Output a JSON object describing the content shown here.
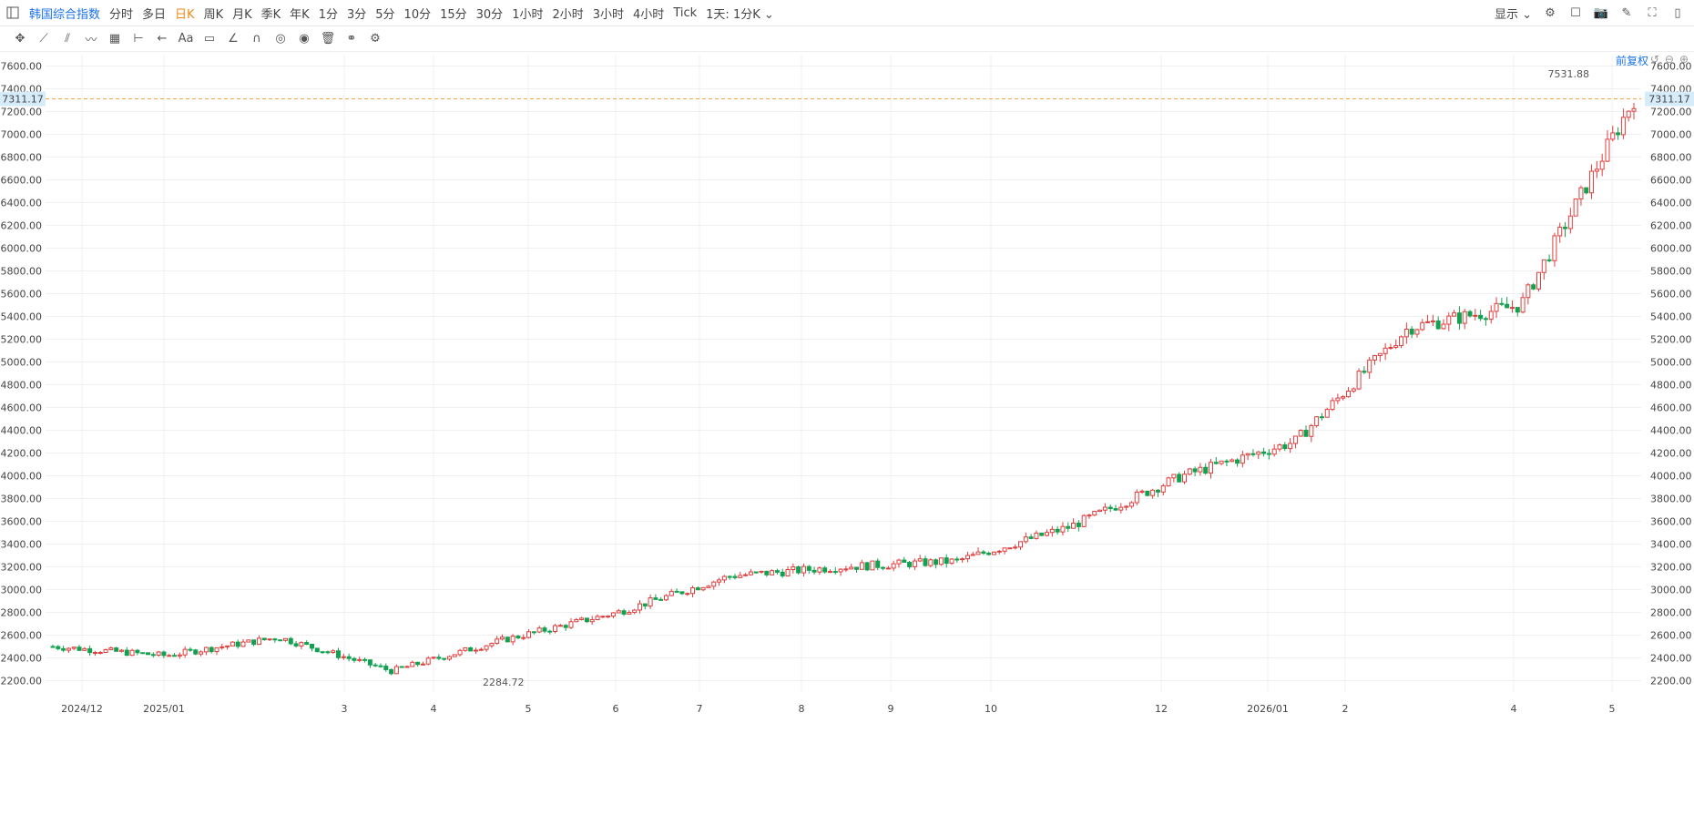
{
  "toolbar": {
    "symbol": "韩国综合指数",
    "periods": [
      "分时",
      "多日",
      "日K",
      "周K",
      "月K",
      "季K",
      "年K",
      "1分",
      "3分",
      "5分",
      "10分",
      "15分",
      "30分",
      "1小时",
      "2小时",
      "3小时",
      "4小时",
      "Tick"
    ],
    "active_period": "日K",
    "kline_setting": "1天: 1分K",
    "display_label": "显示"
  },
  "adjust_label": "前复权",
  "colors": {
    "up": "#e03d3d",
    "down": "#12a150",
    "grid": "#f0f0f0",
    "price_line": "#f0a040",
    "price_tag_bg": "#d6ecfb",
    "accent": "#1a73e8"
  },
  "chart_data": {
    "type": "candlestick",
    "ylim": [
      2100,
      7700
    ],
    "y_ticks": [
      2200,
      2400,
      2600,
      2800,
      3000,
      3200,
      3400,
      3600,
      3800,
      4000,
      4200,
      4400,
      4600,
      4800,
      5000,
      5200,
      5400,
      5600,
      5800,
      6000,
      6200,
      6400,
      6600,
      6800,
      7000,
      7200,
      7400,
      7600
    ],
    "x_tick_labels": [
      "2024/12",
      "2025/01",
      "3",
      "4",
      "5",
      "6",
      "7",
      "8",
      "9",
      "10",
      "12",
      "2026/01",
      "2",
      "4",
      "5"
    ],
    "current_price": "7311.17",
    "high_annotation": "7531.88",
    "low_annotation": "2284.72",
    "series": [
      {
        "c": "2024/12",
        "v": 2500
      },
      {
        "c": "2025/01",
        "v": 2420
      },
      {
        "c": "3",
        "v": 2580
      },
      {
        "c": "4",
        "v": 2285
      },
      {
        "c": "5",
        "v": 2560
      },
      {
        "c": "6",
        "v": 2800
      },
      {
        "c": "7",
        "v": 3120
      },
      {
        "c": "8",
        "v": 3200
      },
      {
        "c": "9",
        "v": 3250
      },
      {
        "c": "10",
        "v": 3550
      },
      {
        "c": "12",
        "v": 4000
      },
      {
        "c": "2026/01",
        "v": 4300
      },
      {
        "c": "2",
        "v": 5300
      },
      {
        "c": "4",
        "v": 5500
      },
      {
        "c": "5",
        "v": 7311
      }
    ]
  }
}
